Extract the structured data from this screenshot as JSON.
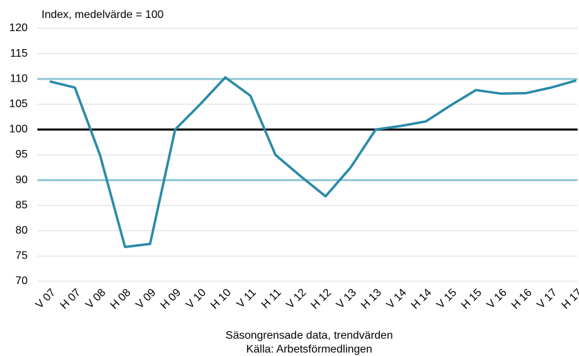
{
  "chart_data": {
    "type": "line",
    "title": "Index, medelvärde = 100",
    "xlabel": "Säsongrensade data, trendvärden",
    "source": "Källa: Arbetsförmedlingen",
    "categories": [
      "V 07",
      "H 07",
      "V 08",
      "H 08",
      "V 09",
      "H 09",
      "V 10",
      "H 10",
      "V 11",
      "H 11",
      "V 12",
      "H 12",
      "V 13",
      "H 13",
      "V 14",
      "H 14",
      "V 15",
      "H 15",
      "V 16",
      "H 16",
      "V 17",
      "H 17"
    ],
    "series": [
      {
        "color": "#2a8aa8",
        "values": [
          109.5,
          108.3,
          95,
          76.8,
          77.4,
          100,
          105,
          110.3,
          106.7,
          95,
          90.8,
          86.8,
          92.5,
          100,
          100.7,
          101.6,
          104.8,
          107.8,
          107.1,
          107.2,
          108.3,
          109.7
        ]
      }
    ],
    "reference_lines": [
      {
        "value": 110,
        "color": "#93c9d6"
      },
      {
        "value": 100,
        "color": "#000000"
      },
      {
        "value": 90,
        "color": "#93c9d6"
      }
    ],
    "ylim": [
      70,
      120
    ],
    "yticks": [
      70,
      75,
      80,
      85,
      90,
      95,
      100,
      105,
      110,
      115,
      120
    ],
    "grid": true
  }
}
